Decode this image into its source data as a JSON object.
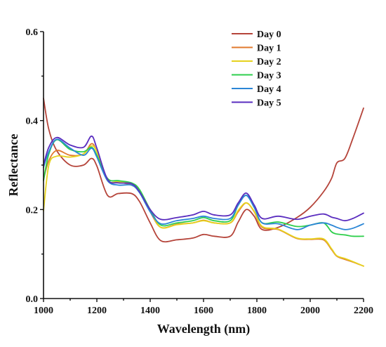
{
  "chart_data": {
    "type": "line",
    "title": "",
    "xlabel": "Wavelength (nm)",
    "ylabel": "Reflectance",
    "xlim": [
      1000,
      2200
    ],
    "ylim": [
      0.0,
      0.6
    ],
    "xticks": [
      1000,
      1200,
      1400,
      1600,
      1800,
      2000,
      2200
    ],
    "xtick_labels": [
      "1000",
      "1200",
      "1400",
      "1600",
      "1800",
      "2000",
      "2200"
    ],
    "yticks": [
      0.0,
      0.2,
      0.4,
      0.6
    ],
    "ytick_labels": [
      "0.0",
      "0.2",
      "0.4",
      "0.6"
    ],
    "grid": false,
    "legend_position": "top-right",
    "x": [
      1000,
      1020,
      1050,
      1100,
      1150,
      1180,
      1200,
      1240,
      1280,
      1330,
      1360,
      1400,
      1440,
      1500,
      1560,
      1600,
      1640,
      1700,
      1730,
      1760,
      1790,
      1820,
      1880,
      1950,
      2000,
      2050,
      2080,
      2100,
      2130,
      2160,
      2200
    ],
    "series": [
      {
        "name": "Day 0",
        "color": "#b5443a",
        "values": [
          0.45,
          0.38,
          0.332,
          0.3,
          0.3,
          0.315,
          0.298,
          0.232,
          0.236,
          0.236,
          0.218,
          0.17,
          0.13,
          0.132,
          0.136,
          0.144,
          0.14,
          0.14,
          0.172,
          0.2,
          0.185,
          0.155,
          0.16,
          0.182,
          0.205,
          0.24,
          0.27,
          0.305,
          0.315,
          0.36,
          0.428
        ]
      },
      {
        "name": "Day 1",
        "color": "#e07a2e",
        "values": [
          0.268,
          0.31,
          0.333,
          0.322,
          0.325,
          0.348,
          0.33,
          0.265,
          0.262,
          0.255,
          0.24,
          0.195,
          0.16,
          0.167,
          0.17,
          0.176,
          0.17,
          0.17,
          0.195,
          0.215,
          0.195,
          0.16,
          0.155,
          0.135,
          0.133,
          0.132,
          0.11,
          0.095,
          0.088,
          0.082,
          0.073
        ]
      },
      {
        "name": "Day 2",
        "color": "#e6d21e",
        "values": [
          0.197,
          0.3,
          0.32,
          0.318,
          0.325,
          0.343,
          0.33,
          0.266,
          0.263,
          0.258,
          0.242,
          0.198,
          0.16,
          0.166,
          0.17,
          0.175,
          0.17,
          0.17,
          0.198,
          0.215,
          0.196,
          0.162,
          0.156,
          0.136,
          0.134,
          0.134,
          0.112,
          0.096,
          0.09,
          0.083,
          0.073
        ]
      },
      {
        "name": "Day 3",
        "color": "#2ecf4c",
        "values": [
          0.265,
          0.325,
          0.357,
          0.335,
          0.33,
          0.34,
          0.322,
          0.27,
          0.265,
          0.26,
          0.245,
          0.2,
          0.165,
          0.17,
          0.175,
          0.182,
          0.175,
          0.175,
          0.21,
          0.232,
          0.205,
          0.17,
          0.172,
          0.162,
          0.165,
          0.17,
          0.15,
          0.145,
          0.143,
          0.14,
          0.14
        ]
      },
      {
        "name": "Day 4",
        "color": "#2b86d6",
        "values": [
          0.295,
          0.33,
          0.358,
          0.338,
          0.322,
          0.338,
          0.318,
          0.265,
          0.255,
          0.255,
          0.238,
          0.195,
          0.168,
          0.175,
          0.18,
          0.185,
          0.18,
          0.18,
          0.21,
          0.232,
          0.205,
          0.17,
          0.168,
          0.155,
          0.165,
          0.17,
          0.165,
          0.16,
          0.155,
          0.158,
          0.168
        ]
      },
      {
        "name": "Day 5",
        "color": "#5a2dbf",
        "values": [
          0.3,
          0.34,
          0.362,
          0.345,
          0.34,
          0.365,
          0.338,
          0.268,
          0.26,
          0.258,
          0.24,
          0.2,
          0.178,
          0.182,
          0.188,
          0.196,
          0.188,
          0.188,
          0.215,
          0.237,
          0.21,
          0.18,
          0.185,
          0.178,
          0.185,
          0.19,
          0.183,
          0.18,
          0.175,
          0.18,
          0.192
        ]
      }
    ]
  }
}
